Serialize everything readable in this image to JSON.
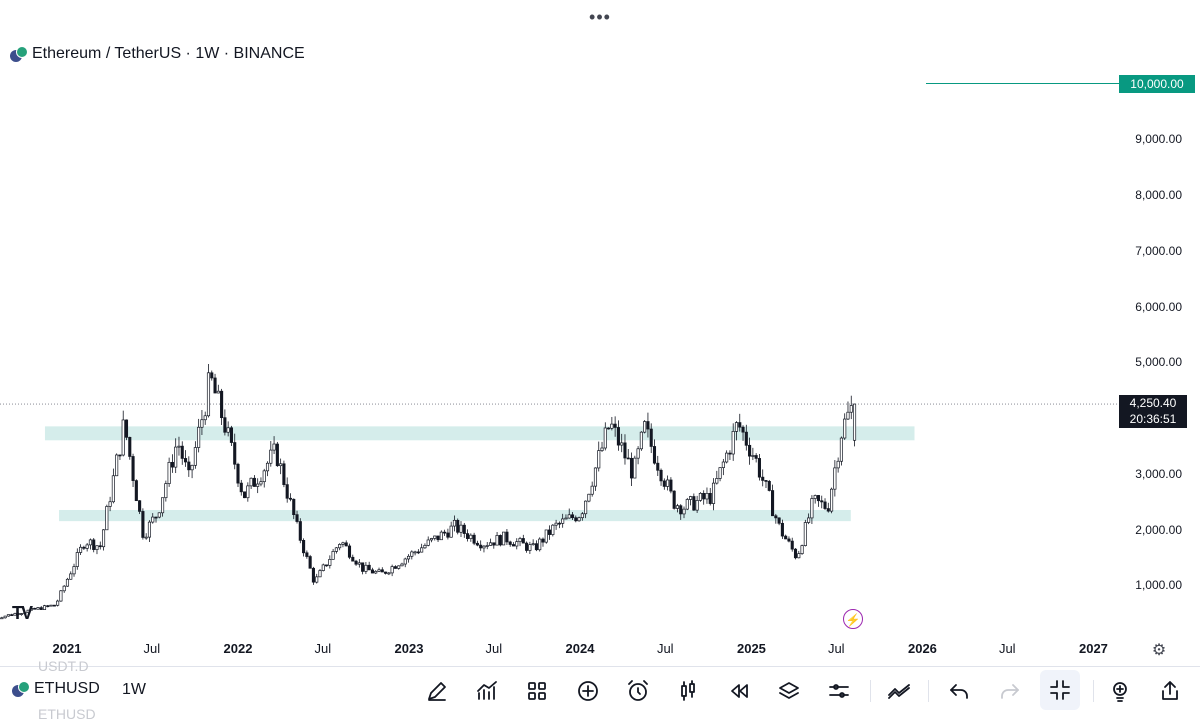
{
  "header": {
    "title": "Ethereum / TetherUS · 1W · BINANCE"
  },
  "price_axis": {
    "labels": [
      "10,000.00",
      "9,000.00",
      "8,000.00",
      "7,000.00",
      "6,000.00",
      "5,000.00",
      "3,000.00",
      "2,000.00",
      "1,000.00"
    ]
  },
  "time_axis": {
    "labels": [
      {
        "text": "2021",
        "year": true,
        "date": "2021-01-01"
      },
      {
        "text": "Jul",
        "year": false,
        "date": "2021-07-01"
      },
      {
        "text": "2022",
        "year": true,
        "date": "2022-01-01"
      },
      {
        "text": "Jul",
        "year": false,
        "date": "2022-07-01"
      },
      {
        "text": "2023",
        "year": true,
        "date": "2023-01-01"
      },
      {
        "text": "Jul",
        "year": false,
        "date": "2023-07-01"
      },
      {
        "text": "2024",
        "year": true,
        "date": "2024-01-01"
      },
      {
        "text": "Jul",
        "year": false,
        "date": "2024-07-01"
      },
      {
        "text": "2025",
        "year": true,
        "date": "2025-01-01"
      },
      {
        "text": "Jul",
        "year": false,
        "date": "2025-07-01"
      },
      {
        "text": "2026",
        "year": true,
        "date": "2026-01-01"
      },
      {
        "text": "Jul",
        "year": false,
        "date": "2026-07-01"
      },
      {
        "text": "2027",
        "year": true,
        "date": "2027-01-01"
      }
    ]
  },
  "target_line": {
    "price": "10,000.00",
    "color": "#089981"
  },
  "current": {
    "price": "4,250.40",
    "countdown": "20:36:51"
  },
  "zones": [
    {
      "name": "resistance-zone",
      "low": 3600,
      "high": 3850,
      "from": "2020-11-15",
      "to": "2025-12-15"
    },
    {
      "name": "support-zone",
      "low": 2150,
      "high": 2350,
      "from": "2020-12-15",
      "to": "2025-08-01"
    }
  ],
  "colors": {
    "zone": "#b2dfdb",
    "candle": "#131722"
  },
  "chart_data": {
    "type": "candlestick",
    "interval": "1W",
    "price_ticks": [
      1000,
      2000,
      3000,
      5000,
      6000,
      7000,
      8000,
      9000,
      10000
    ],
    "current_price": 4250.4,
    "path": [
      [
        "2020-08-01",
        400
      ],
      [
        "2020-12-15",
        650
      ],
      [
        "2021-02-15",
        1800
      ],
      [
        "2021-03-20",
        1700
      ],
      [
        "2021-05-10",
        3900
      ],
      [
        "2021-06-20",
        1900
      ],
      [
        "2021-07-20",
        2300
      ],
      [
        "2021-09-01",
        3600
      ],
      [
        "2021-09-25",
        2900
      ],
      [
        "2021-11-10",
        4700
      ],
      [
        "2021-12-10",
        3900
      ],
      [
        "2022-01-20",
        2600
      ],
      [
        "2022-03-30",
        3400
      ],
      [
        "2022-05-15",
        2000
      ],
      [
        "2022-06-20",
        1050
      ],
      [
        "2022-08-15",
        1800
      ],
      [
        "2022-10-01",
        1300
      ],
      [
        "2022-11-10",
        1200
      ],
      [
        "2023-01-20",
        1600
      ],
      [
        "2023-04-15",
        2050
      ],
      [
        "2023-06-15",
        1750
      ],
      [
        "2023-08-01",
        1850
      ],
      [
        "2023-10-01",
        1650
      ],
      [
        "2023-11-15",
        2050
      ],
      [
        "2024-01-10",
        2300
      ],
      [
        "2024-03-12",
        3900
      ],
      [
        "2024-05-01",
        3000
      ],
      [
        "2024-05-25",
        3800
      ],
      [
        "2024-07-25",
        2500
      ],
      [
        "2024-08-15",
        2400
      ],
      [
        "2024-10-15",
        2600
      ],
      [
        "2024-12-10",
        3900
      ],
      [
        "2025-01-15",
        3300
      ],
      [
        "2025-03-10",
        2000
      ],
      [
        "2025-04-15",
        1500
      ],
      [
        "2025-05-20",
        2500
      ],
      [
        "2025-06-20",
        2400
      ],
      [
        "2025-07-20",
        3800
      ],
      [
        "2025-08-14",
        4250.4
      ]
    ]
  },
  "bottom_bar": {
    "symbol": "ETHUSD",
    "interval": "1W",
    "ghost_top": "USDT.D",
    "ghost_bottom": "ETHUSD"
  },
  "toolbar": [
    {
      "name": "drawing-tools-button",
      "icon": "pencil-icon"
    },
    {
      "name": "indicators-button",
      "icon": "chart-trend-icon"
    },
    {
      "name": "layout-button",
      "icon": "grid-icon"
    },
    {
      "name": "add-button",
      "icon": "plus-circle-icon"
    },
    {
      "name": "alert-button",
      "icon": "alarm-clock-icon"
    },
    {
      "name": "chart-type-button",
      "icon": "candles-icon"
    },
    {
      "name": "replay-button",
      "icon": "rewind-icon"
    },
    {
      "name": "object-tree-button",
      "icon": "layers-icon"
    },
    {
      "name": "settings-button",
      "icon": "sliders-icon"
    },
    {
      "name": "compare-button",
      "icon": "multi-line-icon"
    },
    {
      "name": "undo-button",
      "icon": "undo-icon"
    },
    {
      "name": "redo-button",
      "icon": "redo-icon"
    },
    {
      "name": "fullscreen-exit-button",
      "icon": "collapse-icon"
    },
    {
      "name": "ideas-button",
      "icon": "lightbulb-icon"
    },
    {
      "name": "share-button",
      "icon": "share-icon"
    }
  ]
}
